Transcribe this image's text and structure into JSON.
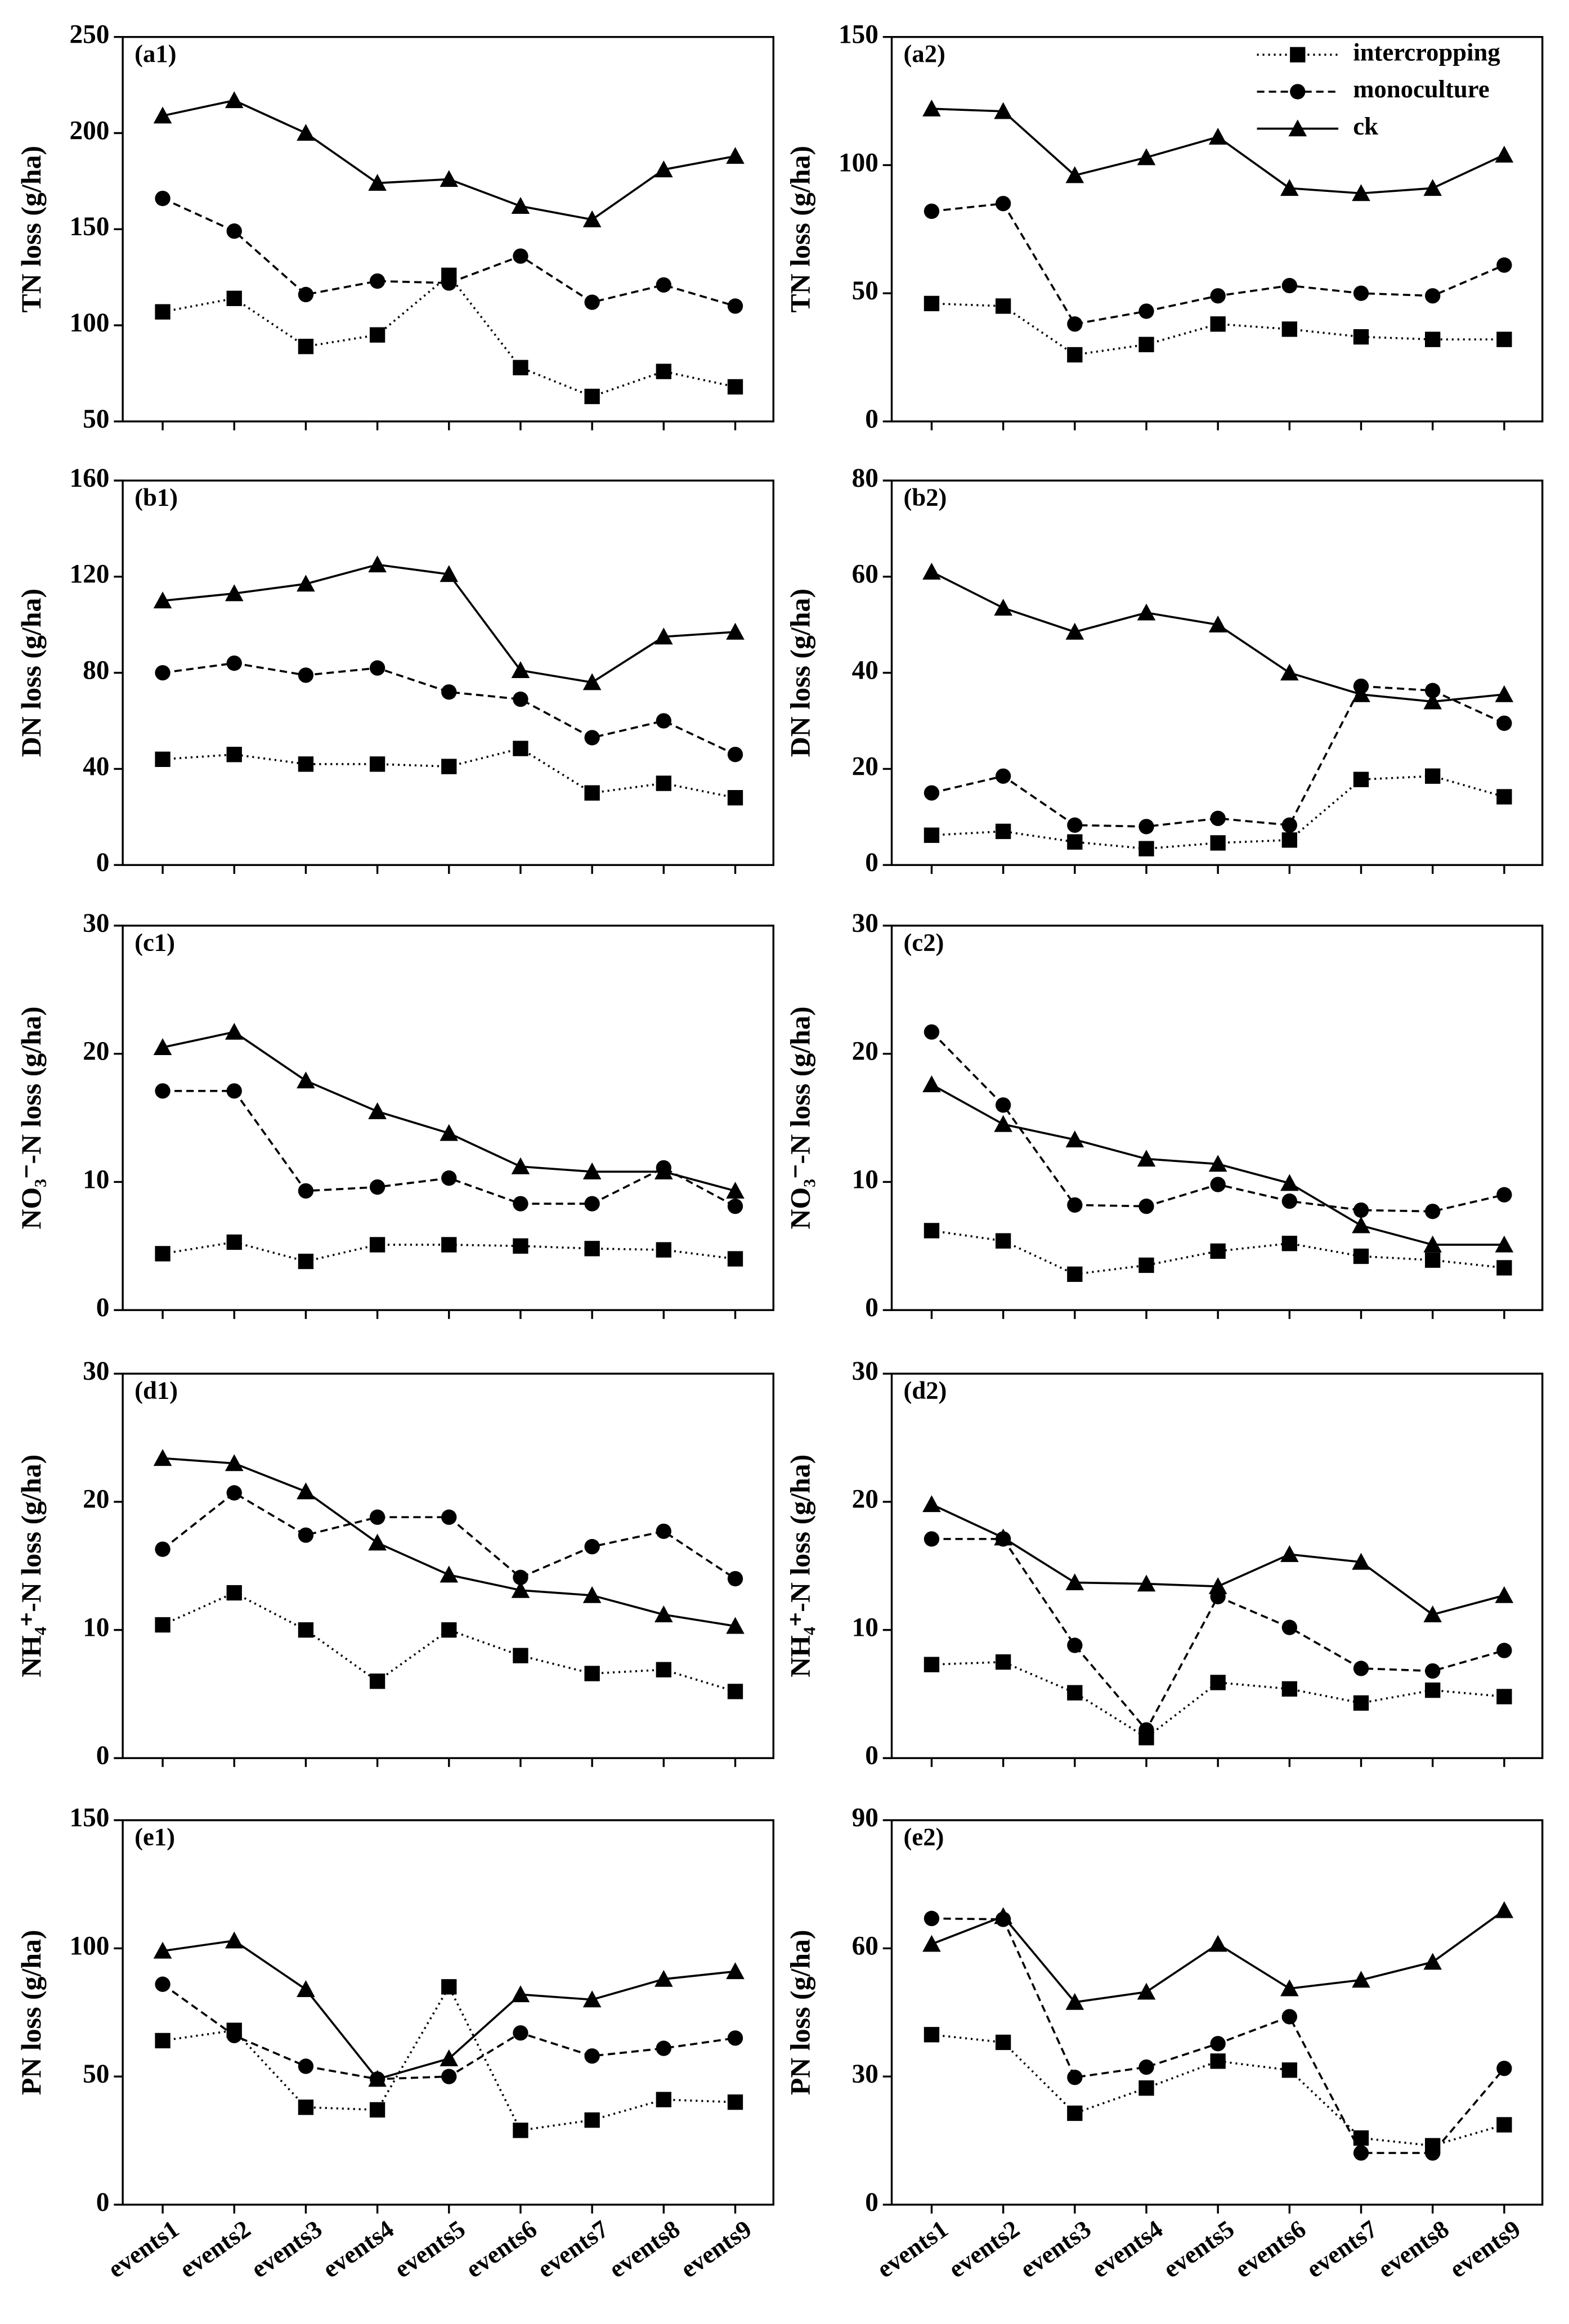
{
  "chart_data": [
    {
      "type": "line",
      "panel_label": "(a1)",
      "ylabel": "TN loss (g/ha)",
      "categories": [
        null,
        null,
        null,
        null,
        null,
        null,
        null,
        null,
        null
      ],
      "ylim": [
        50,
        250
      ],
      "yticks": [
        50,
        100,
        150,
        200,
        250
      ],
      "series": [
        {
          "color": "#000000",
          "marker": "square",
          "dash": "dotted",
          "values": [
            107,
            114,
            89,
            95,
            126,
            78,
            63,
            76,
            68
          ]
        },
        {
          "color": "#000000",
          "marker": "circle",
          "dash": "dashed",
          "values": [
            166,
            149,
            116,
            123,
            122,
            136,
            112,
            121,
            110
          ]
        },
        {
          "color": "#000000",
          "marker": "triangle",
          "dash": "solid",
          "values": [
            209,
            217,
            200,
            174,
            176,
            162,
            155,
            181,
            188
          ]
        }
      ]
    },
    {
      "type": "line",
      "panel_label": "(a2)",
      "ylabel": "TN loss (g/ha)",
      "categories": [
        null,
        null,
        null,
        null,
        null,
        null,
        null,
        null,
        null
      ],
      "ylim": [
        0,
        150
      ],
      "yticks": [
        0,
        50,
        100,
        150
      ],
      "legend": "upper right",
      "series": [
        {
          "name": "intercropping",
          "color": "#000000",
          "marker": "square",
          "dash": "dotted",
          "values": [
            46,
            45,
            26,
            30,
            38,
            36,
            33,
            32,
            32
          ]
        },
        {
          "name": "monoculture",
          "color": "#000000",
          "marker": "circle",
          "dash": "dashed",
          "values": [
            82,
            85,
            38,
            43,
            49,
            53,
            50,
            49,
            61
          ]
        },
        {
          "name": "ck",
          "color": "#000000",
          "marker": "triangle",
          "dash": "solid",
          "values": [
            122,
            121,
            96,
            103,
            111,
            91,
            89,
            91,
            104
          ]
        }
      ]
    },
    {
      "type": "line",
      "panel_label": "(b1)",
      "ylabel": "DN loss (g/ha)",
      "categories": [
        null,
        null,
        null,
        null,
        null,
        null,
        null,
        null,
        null
      ],
      "ylim": [
        0,
        160
      ],
      "yticks": [
        0,
        40,
        80,
        120,
        160
      ],
      "series": [
        {
          "color": "#000000",
          "marker": "square",
          "dash": "dotted",
          "values": [
            44,
            46,
            42,
            42,
            41,
            48.5,
            30,
            34,
            28
          ]
        },
        {
          "color": "#000000",
          "marker": "circle",
          "dash": "dashed",
          "values": [
            80,
            84,
            79,
            82,
            72,
            69,
            53,
            60,
            46
          ]
        },
        {
          "color": "#000000",
          "marker": "triangle",
          "dash": "solid",
          "values": [
            110,
            113,
            117,
            125,
            121,
            81,
            76,
            95,
            97
          ]
        }
      ]
    },
    {
      "type": "line",
      "panel_label": "(b2)",
      "ylabel": "DN loss (g/ha)",
      "categories": [
        null,
        null,
        null,
        null,
        null,
        null,
        null,
        null,
        null
      ],
      "ylim": [
        0,
        80
      ],
      "yticks": [
        0,
        20,
        40,
        60,
        80
      ],
      "series": [
        {
          "color": "#000000",
          "marker": "square",
          "dash": "dotted",
          "values": [
            6.2,
            7,
            4.8,
            3.4,
            4.6,
            5.2,
            17.8,
            18.5,
            14.2
          ]
        },
        {
          "color": "#000000",
          "marker": "circle",
          "dash": "dashed",
          "values": [
            15,
            18.5,
            8.3,
            8,
            9.7,
            8.3,
            37.2,
            36.3,
            29.5
          ]
        },
        {
          "color": "#000000",
          "marker": "triangle",
          "dash": "solid",
          "values": [
            61,
            53.5,
            48.5,
            52.5,
            50,
            40,
            35.5,
            34,
            35.5
          ]
        }
      ]
    },
    {
      "type": "line",
      "panel_label": "(c1)",
      "ylabel": "NO₃⁻-N loss (g/ha)",
      "categories": [
        null,
        null,
        null,
        null,
        null,
        null,
        null,
        null,
        null
      ],
      "ylim": [
        0,
        30
      ],
      "yticks": [
        0,
        10,
        20,
        30
      ],
      "series": [
        {
          "color": "#000000",
          "marker": "square",
          "dash": "dotted",
          "values": [
            4.4,
            5.3,
            3.8,
            5.1,
            5.1,
            5,
            4.8,
            4.7,
            4
          ]
        },
        {
          "color": "#000000",
          "marker": "circle",
          "dash": "dashed",
          "values": [
            17.1,
            17.1,
            9.3,
            9.6,
            10.3,
            8.3,
            8.3,
            11.1,
            8.1
          ]
        },
        {
          "color": "#000000",
          "marker": "triangle",
          "dash": "solid",
          "values": [
            20.5,
            21.7,
            17.9,
            15.5,
            13.8,
            11.2,
            10.8,
            10.8,
            9.3
          ]
        }
      ]
    },
    {
      "type": "line",
      "panel_label": "(c2)",
      "ylabel": "NO₃⁻-N loss (g/ha)",
      "categories": [
        null,
        null,
        null,
        null,
        null,
        null,
        null,
        null,
        null
      ],
      "ylim": [
        0,
        30
      ],
      "yticks": [
        0,
        10,
        20,
        30
      ],
      "series": [
        {
          "color": "#000000",
          "marker": "square",
          "dash": "dotted",
          "values": [
            6.2,
            5.4,
            2.8,
            3.5,
            4.6,
            5.2,
            4.2,
            3.9,
            3.3
          ]
        },
        {
          "color": "#000000",
          "marker": "circle",
          "dash": "dashed",
          "values": [
            21.7,
            16,
            8.2,
            8.1,
            9.8,
            8.5,
            7.8,
            7.7,
            9
          ]
        },
        {
          "color": "#000000",
          "marker": "triangle",
          "dash": "solid",
          "values": [
            17.6,
            14.5,
            13.3,
            11.8,
            11.4,
            9.9,
            6.6,
            5.1,
            5.1
          ]
        }
      ]
    },
    {
      "type": "line",
      "panel_label": "(d1)",
      "ylabel": "NH₄⁺-N loss (g/ha)",
      "categories": [
        null,
        null,
        null,
        null,
        null,
        null,
        null,
        null,
        null
      ],
      "ylim": [
        0,
        30
      ],
      "yticks": [
        0,
        10,
        20,
        30
      ],
      "series": [
        {
          "color": "#000000",
          "marker": "square",
          "dash": "dotted",
          "values": [
            10.4,
            12.9,
            10,
            6,
            10,
            8,
            6.6,
            6.9,
            5.2
          ]
        },
        {
          "color": "#000000",
          "marker": "circle",
          "dash": "dashed",
          "values": [
            16.3,
            20.7,
            17.4,
            18.8,
            18.8,
            14.1,
            16.5,
            17.7,
            14
          ]
        },
        {
          "color": "#000000",
          "marker": "triangle",
          "dash": "solid",
          "values": [
            23.4,
            23,
            20.8,
            16.8,
            14.3,
            13.1,
            12.7,
            11.2,
            10.3
          ]
        }
      ]
    },
    {
      "type": "line",
      "panel_label": "(d2)",
      "ylabel": "NH₄⁺-N loss (g/ha)",
      "categories": [
        null,
        null,
        null,
        null,
        null,
        null,
        null,
        null,
        null
      ],
      "ylim": [
        0,
        30
      ],
      "yticks": [
        0,
        10,
        20,
        30
      ],
      "series": [
        {
          "color": "#000000",
          "marker": "square",
          "dash": "dotted",
          "values": [
            7.3,
            7.5,
            5.1,
            1.6,
            5.9,
            5.4,
            4.3,
            5.3,
            4.8
          ]
        },
        {
          "color": "#000000",
          "marker": "circle",
          "dash": "dashed",
          "values": [
            17.1,
            17.1,
            8.8,
            2.2,
            12.6,
            10.2,
            7,
            6.8,
            8.4
          ]
        },
        {
          "color": "#000000",
          "marker": "triangle",
          "dash": "solid",
          "values": [
            19.8,
            17.2,
            13.7,
            13.6,
            13.4,
            15.9,
            15.3,
            11.2,
            12.7
          ]
        }
      ]
    },
    {
      "type": "line",
      "panel_label": "(e1)",
      "ylabel": "PN loss (g/ha)",
      "categories": [
        "events1",
        "events2",
        "events3",
        "events4",
        "events5",
        "events6",
        "events7",
        "events8",
        "events9"
      ],
      "ylim": [
        0,
        150
      ],
      "yticks": [
        0,
        50,
        100,
        150
      ],
      "series": [
        {
          "color": "#000000",
          "marker": "square",
          "dash": "dotted",
          "values": [
            64,
            68,
            38,
            37,
            85,
            29,
            33,
            41,
            40
          ]
        },
        {
          "color": "#000000",
          "marker": "circle",
          "dash": "dashed",
          "values": [
            86,
            66,
            54,
            49,
            50,
            67,
            58,
            61,
            65
          ]
        },
        {
          "color": "#000000",
          "marker": "triangle",
          "dash": "solid",
          "values": [
            99,
            103,
            84,
            49,
            57,
            82,
            80,
            88,
            91
          ]
        }
      ]
    },
    {
      "type": "line",
      "panel_label": "(e2)",
      "ylabel": "PN loss (g/ha)",
      "categories": [
        "events1",
        "events2",
        "events3",
        "events4",
        "events5",
        "events6",
        "events7",
        "events8",
        "events9"
      ],
      "ylim": [
        0,
        90
      ],
      "yticks": [
        0,
        30,
        60,
        90
      ],
      "series": [
        {
          "color": "#000000",
          "marker": "square",
          "dash": "dotted",
          "values": [
            39.8,
            38,
            21.4,
            27.3,
            33.6,
            31.5,
            15.6,
            13.8,
            18.7
          ]
        },
        {
          "color": "#000000",
          "marker": "circle",
          "dash": "dashed",
          "values": [
            67,
            66.8,
            29.8,
            32.2,
            37.7,
            44,
            12.1,
            12.1,
            31.9
          ]
        },
        {
          "color": "#000000",
          "marker": "triangle",
          "dash": "solid",
          "values": [
            61,
            67.5,
            47.4,
            49.8,
            61,
            50.6,
            52.6,
            56.8,
            68.9
          ]
        }
      ]
    }
  ]
}
